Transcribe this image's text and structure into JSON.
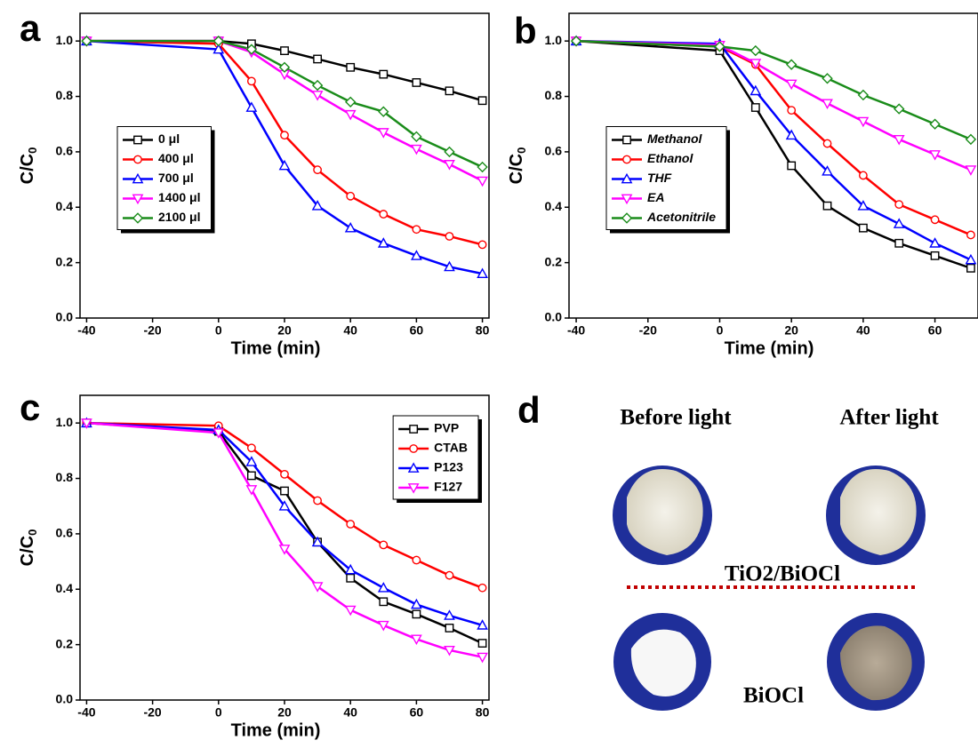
{
  "chart_data": [
    {
      "type": "line",
      "panel": "a",
      "xlabel": "Time (min)",
      "ylabel": "C/C",
      "ylabel_sub": "0",
      "x": [
        -40,
        0,
        10,
        20,
        30,
        40,
        50,
        60,
        70,
        80
      ],
      "series": [
        {
          "name": "0 μl",
          "color": "#000000",
          "marker": "square",
          "values": [
            1.0,
            1.0,
            0.99,
            0.965,
            0.935,
            0.905,
            0.88,
            0.85,
            0.82,
            0.785
          ]
        },
        {
          "name": "400 μl",
          "color": "#ff0000",
          "marker": "circle",
          "values": [
            1.0,
            0.99,
            0.855,
            0.66,
            0.535,
            0.44,
            0.375,
            0.32,
            0.295,
            0.265
          ]
        },
        {
          "name": "700 μl",
          "color": "#0000ff",
          "marker": "triangle-up",
          "values": [
            1.0,
            0.97,
            0.76,
            0.55,
            0.405,
            0.325,
            0.27,
            0.225,
            0.185,
            0.16
          ]
        },
        {
          "name": "1400 μl",
          "color": "#ff00ff",
          "marker": "triangle-down",
          "values": [
            1.0,
            1.0,
            0.96,
            0.88,
            0.805,
            0.735,
            0.67,
            0.61,
            0.555,
            0.495
          ]
        },
        {
          "name": "2100 μl",
          "color": "#1a8c1a",
          "marker": "diamond",
          "values": [
            1.0,
            1.0,
            0.97,
            0.905,
            0.84,
            0.78,
            0.745,
            0.655,
            0.6,
            0.545
          ]
        }
      ],
      "xlim": [
        -42,
        82
      ],
      "ylim": [
        0,
        1.1
      ],
      "xticks": [
        -40,
        -20,
        0,
        20,
        40,
        60,
        80
      ],
      "yticks": [
        {
          "value": 0,
          "label": "0.0"
        },
        {
          "value": 0.2,
          "label": "0.2"
        },
        {
          "value": 0.4,
          "label": "0.4"
        },
        {
          "value": 0.6,
          "label": "0.6"
        },
        {
          "value": 0.8,
          "label": "0.8"
        },
        {
          "value": 1,
          "label": "1.0"
        }
      ],
      "legend": "center left"
    },
    {
      "type": "line",
      "panel": "b",
      "xlabel": "Time (min)",
      "ylabel": "C/C",
      "ylabel_sub": "0",
      "legend_italic": true,
      "x": [
        -40,
        0,
        10,
        20,
        30,
        40,
        50,
        60,
        70
      ],
      "series": [
        {
          "name": "Methanol",
          "color": "#000000",
          "marker": "square",
          "values": [
            1.0,
            0.965,
            0.76,
            0.55,
            0.405,
            0.325,
            0.27,
            0.225,
            0.18
          ]
        },
        {
          "name": "Ethanol",
          "color": "#ff0000",
          "marker": "circle",
          "values": [
            1.0,
            0.98,
            0.915,
            0.75,
            0.63,
            0.515,
            0.41,
            0.355,
            0.3
          ]
        },
        {
          "name": "THF",
          "color": "#0000ff",
          "marker": "triangle-up",
          "values": [
            1.0,
            0.99,
            0.82,
            0.66,
            0.53,
            0.405,
            0.34,
            0.27,
            0.21
          ]
        },
        {
          "name": "EA",
          "color": "#ff00ff",
          "marker": "triangle-down",
          "values": [
            1.0,
            0.985,
            0.92,
            0.845,
            0.775,
            0.71,
            0.645,
            0.59,
            0.535
          ]
        },
        {
          "name": "Acetonitrile",
          "color": "#1a8c1a",
          "marker": "diamond",
          "values": [
            1.0,
            0.98,
            0.965,
            0.915,
            0.865,
            0.805,
            0.755,
            0.7,
            0.645
          ]
        }
      ],
      "xlim": [
        -42,
        72
      ],
      "ylim": [
        0,
        1.1
      ],
      "xticks": [
        -40,
        -20,
        0,
        20,
        40,
        60
      ],
      "yticks": [
        {
          "value": 0,
          "label": "0.0"
        },
        {
          "value": 0.2,
          "label": "0.2"
        },
        {
          "value": 0.4,
          "label": "0.4"
        },
        {
          "value": 0.6,
          "label": "0.6"
        },
        {
          "value": 0.8,
          "label": "0.8"
        },
        {
          "value": 1,
          "label": "1.0"
        }
      ],
      "legend": "center left"
    },
    {
      "type": "line",
      "panel": "c",
      "xlabel": "Time (min)",
      "ylabel": "C/C",
      "ylabel_sub": "0",
      "x": [
        -40,
        0,
        10,
        20,
        30,
        40,
        50,
        60,
        70,
        80
      ],
      "series": [
        {
          "name": "PVP",
          "color": "#000000",
          "marker": "square",
          "values": [
            1.0,
            0.97,
            0.81,
            0.755,
            0.57,
            0.44,
            0.355,
            0.31,
            0.26,
            0.205
          ]
        },
        {
          "name": "CTAB",
          "color": "#ff0000",
          "marker": "circle",
          "values": [
            1.0,
            0.99,
            0.91,
            0.815,
            0.72,
            0.635,
            0.56,
            0.505,
            0.45,
            0.405
          ]
        },
        {
          "name": "P123",
          "color": "#0000ff",
          "marker": "triangle-up",
          "values": [
            1.0,
            0.975,
            0.86,
            0.7,
            0.57,
            0.47,
            0.405,
            0.345,
            0.305,
            0.27
          ]
        },
        {
          "name": "F127",
          "color": "#ff00ff",
          "marker": "triangle-down",
          "values": [
            1.0,
            0.965,
            0.76,
            0.545,
            0.41,
            0.325,
            0.27,
            0.22,
            0.18,
            0.155
          ]
        }
      ],
      "xlim": [
        -42,
        82
      ],
      "ylim": [
        0,
        1.1
      ],
      "xticks": [
        -40,
        -20,
        0,
        20,
        40,
        60,
        80
      ],
      "yticks": [
        {
          "value": 0,
          "label": "0.0"
        },
        {
          "value": 0.2,
          "label": "0.2"
        },
        {
          "value": 0.4,
          "label": "0.4"
        },
        {
          "value": 0.6,
          "label": "0.6"
        },
        {
          "value": 0.8,
          "label": "0.8"
        },
        {
          "value": 1,
          "label": "1.0"
        }
      ],
      "legend": "upper right"
    }
  ],
  "photo_panel": {
    "panel": "d",
    "columns": [
      "Before light",
      "After light"
    ],
    "labels": [
      "TiO2/BiOCl",
      "BiOCl"
    ]
  }
}
